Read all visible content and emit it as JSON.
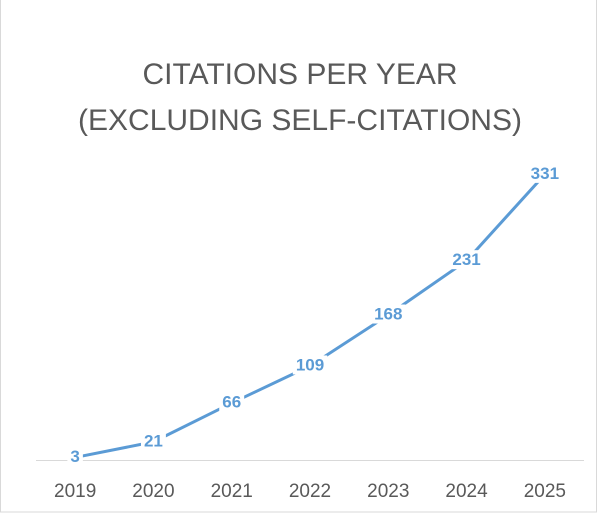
{
  "chart_data": {
    "type": "line",
    "title": [
      "CITATIONS PER YEAR",
      "(EXCLUDING SELF-CITATIONS)"
    ],
    "categories": [
      "2019",
      "2020",
      "2021",
      "2022",
      "2023",
      "2024",
      "2025"
    ],
    "values": [
      3,
      21,
      66,
      109,
      168,
      231,
      331
    ],
    "color": "#5b9bd5",
    "ylim": [
      0,
      350
    ],
    "grid": false
  }
}
